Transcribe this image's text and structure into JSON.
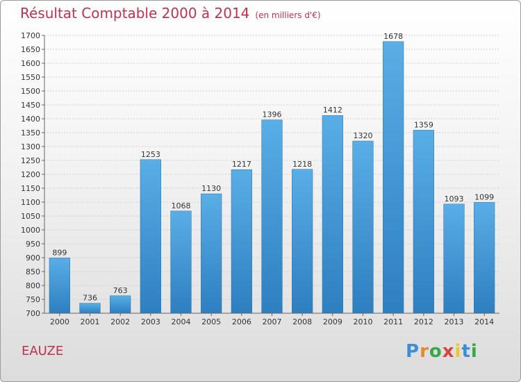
{
  "chart_data": {
    "type": "bar",
    "title": "Résultat Comptable 2000 à 2014",
    "subtitle": "(en milliers d'€)",
    "categories": [
      "2000",
      "2001",
      "2002",
      "2003",
      "2004",
      "2005",
      "2006",
      "2007",
      "2008",
      "2009",
      "2010",
      "2011",
      "2012",
      "2013",
      "2014"
    ],
    "values": [
      899,
      736,
      763,
      1253,
      1068,
      1130,
      1217,
      1396,
      1218,
      1412,
      1320,
      1678,
      1359,
      1093,
      1099
    ],
    "ylim": [
      700,
      1700
    ],
    "ytick_step": 50,
    "grid": true,
    "bar_color_top": "#5aaee6",
    "bar_color_bottom": "#2d7fc0"
  },
  "location": "EAUZE",
  "brand": {
    "name": "Proxiti",
    "letters": [
      "P",
      "r",
      "o",
      "x",
      "i",
      "t",
      "i"
    ],
    "colors": [
      "#3a8fd6",
      "#e8892a",
      "#3aa64a",
      "#d8433a",
      "#e8c82a",
      "#3a8fd6",
      "#3aa64a"
    ]
  }
}
